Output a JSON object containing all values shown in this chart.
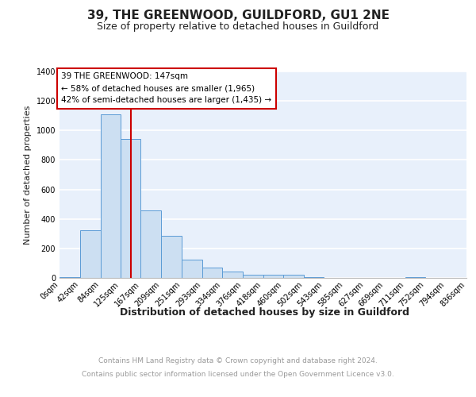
{
  "title": "39, THE GREENWOOD, GUILDFORD, GU1 2NE",
  "subtitle": "Size of property relative to detached houses in Guildford",
  "xlabel": "Distribution of detached houses by size in Guildford",
  "ylabel": "Number of detached properties",
  "footer_line1": "Contains HM Land Registry data © Crown copyright and database right 2024.",
  "footer_line2": "Contains public sector information licensed under the Open Government Licence v3.0.",
  "bin_edges": [
    0,
    42,
    84,
    125,
    167,
    209,
    251,
    293,
    334,
    376,
    418,
    460,
    502,
    543,
    585,
    627,
    669,
    711,
    752,
    794,
    836
  ],
  "bin_labels": [
    "0sqm",
    "42sqm",
    "84sqm",
    "125sqm",
    "167sqm",
    "209sqm",
    "251sqm",
    "293sqm",
    "334sqm",
    "376sqm",
    "418sqm",
    "460sqm",
    "502sqm",
    "543sqm",
    "585sqm",
    "627sqm",
    "669sqm",
    "711sqm",
    "752sqm",
    "794sqm",
    "836sqm"
  ],
  "counts": [
    5,
    325,
    1110,
    940,
    460,
    285,
    125,
    70,
    45,
    20,
    20,
    20,
    5,
    0,
    0,
    0,
    0,
    5,
    0,
    0
  ],
  "bar_face_color": "#ccdff2",
  "bar_edge_color": "#5b9bd5",
  "property_size": 147,
  "line_color": "#cc0000",
  "annotation_line1": "39 THE GREENWOOD: 147sqm",
  "annotation_line2": "← 58% of detached houses are smaller (1,965)",
  "annotation_line3": "42% of semi-detached houses are larger (1,435) →",
  "annotation_box_edgecolor": "#cc0000",
  "ylim_max": 1400,
  "yticks": [
    0,
    200,
    400,
    600,
    800,
    1000,
    1200,
    1400
  ],
  "plot_bg": "#e8f0fb",
  "grid_color": "#ffffff",
  "title_fontsize": 11,
  "subtitle_fontsize": 9,
  "ylabel_fontsize": 8,
  "xlabel_fontsize": 9,
  "tick_fontsize": 7,
  "anno_fontsize": 7.5,
  "footer_fontsize": 6.5,
  "footer_color": "#999999",
  "title_color": "#222222",
  "xlabel_color": "#222222"
}
